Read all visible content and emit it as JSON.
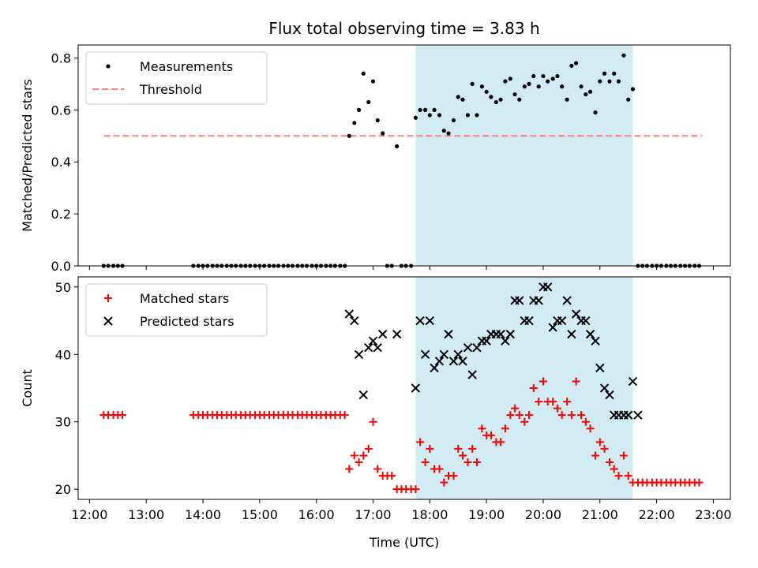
{
  "chart_data": {
    "type": "scatter",
    "title": "Flux total observing time = 3.83 h",
    "xlabel": "Time (UTC)",
    "x_unit": "UTC hour",
    "xlim": [
      11.8,
      23.3
    ],
    "x_ticks": [
      {
        "value": 12,
        "label": "12:00"
      },
      {
        "value": 13,
        "label": "13:00"
      },
      {
        "value": 14,
        "label": "14:00"
      },
      {
        "value": 15,
        "label": "15:00"
      },
      {
        "value": 16,
        "label": "16:00"
      },
      {
        "value": 17,
        "label": "17:00"
      },
      {
        "value": 18,
        "label": "18:00"
      },
      {
        "value": 19,
        "label": "19:00"
      },
      {
        "value": 20,
        "label": "20:00"
      },
      {
        "value": 21,
        "label": "21:00"
      },
      {
        "value": 22,
        "label": "22:00"
      },
      {
        "value": 23,
        "label": "23:00"
      }
    ],
    "highlight_span": {
      "x_start": 17.75,
      "x_end": 21.58,
      "color": "#add8e6"
    },
    "panels": [
      {
        "ylabel": "Matched/Predicted stars",
        "ylim": [
          0,
          0.85
        ],
        "y_ticks": [
          {
            "value": 0.0,
            "label": "0.0"
          },
          {
            "value": 0.2,
            "label": "0.2"
          },
          {
            "value": 0.4,
            "label": "0.4"
          },
          {
            "value": 0.6,
            "label": "0.6"
          },
          {
            "value": 0.8,
            "label": "0.8"
          }
        ],
        "legend": {
          "position": "upper-left",
          "entries": [
            {
              "label": "Measurements",
              "marker": "dot",
              "color": "#000000"
            },
            {
              "label": "Threshold",
              "marker": "dashed-line",
              "color": "#ff7f7f"
            }
          ]
        },
        "threshold": {
          "value": 0.5,
          "x_start": 12.25,
          "x_end": 22.8,
          "color": "#ff7f7f"
        },
        "series": [
          {
            "name": "Measurements",
            "marker": "dot",
            "color": "#000000",
            "x": [
              12.25,
              12.33,
              12.42,
              12.5,
              12.58,
              13.83,
              13.92,
              14.0,
              14.08,
              14.17,
              14.25,
              14.33,
              14.42,
              14.5,
              14.58,
              14.67,
              14.75,
              14.83,
              14.92,
              15.0,
              15.08,
              15.17,
              15.25,
              15.33,
              15.42,
              15.5,
              15.58,
              15.67,
              15.75,
              15.83,
              15.92,
              16.0,
              16.08,
              16.17,
              16.25,
              16.33,
              16.42,
              16.5,
              16.58,
              16.67,
              16.75,
              16.83,
              16.92,
              17.0,
              17.08,
              17.17,
              17.25,
              17.33,
              17.42,
              17.5,
              17.58,
              17.67,
              17.75,
              17.83,
              17.92,
              18.0,
              18.08,
              18.17,
              18.25,
              18.33,
              18.42,
              18.5,
              18.58,
              18.67,
              18.75,
              18.83,
              18.92,
              19.0,
              19.08,
              19.17,
              19.25,
              19.33,
              19.42,
              19.5,
              19.58,
              19.67,
              19.75,
              19.83,
              19.92,
              20.0,
              20.08,
              20.17,
              20.25,
              20.33,
              20.42,
              20.5,
              20.58,
              20.67,
              20.75,
              20.83,
              20.92,
              21.0,
              21.08,
              21.17,
              21.25,
              21.33,
              21.42,
              21.5,
              21.58,
              21.67,
              21.75,
              21.83,
              21.92,
              22.0,
              22.08,
              22.17,
              22.25,
              22.33,
              22.42,
              22.5,
              22.58,
              22.67,
              22.75
            ],
            "y": [
              0,
              0,
              0,
              0,
              0,
              0,
              0,
              0,
              0,
              0,
              0,
              0,
              0,
              0,
              0,
              0,
              0,
              0,
              0,
              0,
              0,
              0,
              0,
              0,
              0,
              0,
              0,
              0,
              0,
              0,
              0,
              0,
              0,
              0,
              0,
              0,
              0,
              0,
              0.5,
              0.55,
              0.6,
              0.74,
              0.63,
              0.71,
              0.56,
              0.51,
              0,
              0,
              0.46,
              0,
              0,
              0,
              0.57,
              0.6,
              0.6,
              0.58,
              0.6,
              0.58,
              0.52,
              0.51,
              0.56,
              0.65,
              0.64,
              0.58,
              0.7,
              0.58,
              0.69,
              0.67,
              0.65,
              0.63,
              0.64,
              0.71,
              0.72,
              0.66,
              0.64,
              0.69,
              0.7,
              0.73,
              0.69,
              0.73,
              0.71,
              0.72,
              0.73,
              0.69,
              0.64,
              0.77,
              0.78,
              0.69,
              0.66,
              0.67,
              0.59,
              0.71,
              0.74,
              0.71,
              0.74,
              0.71,
              0.81,
              0.64,
              0.68,
              0,
              0,
              0,
              0,
              0,
              0,
              0,
              0,
              0,
              0,
              0,
              0,
              0,
              0
            ]
          }
        ]
      },
      {
        "ylabel": "Count",
        "ylim": [
          18.5,
          51.5
        ],
        "y_ticks": [
          {
            "value": 20,
            "label": "20"
          },
          {
            "value": 30,
            "label": "30"
          },
          {
            "value": 40,
            "label": "40"
          },
          {
            "value": 50,
            "label": "50"
          }
        ],
        "legend": {
          "position": "upper-left",
          "entries": [
            {
              "label": "Matched stars",
              "marker": "plus",
              "color": "#ff0000"
            },
            {
              "label": "Predicted stars",
              "marker": "cross",
              "color": "#000000"
            }
          ]
        },
        "series": [
          {
            "name": "Matched stars",
            "marker": "plus",
            "color": "#ff0000",
            "x": [
              12.25,
              12.33,
              12.42,
              12.5,
              12.58,
              13.83,
              13.92,
              14.0,
              14.08,
              14.17,
              14.25,
              14.33,
              14.42,
              14.5,
              14.58,
              14.67,
              14.75,
              14.83,
              14.92,
              15.0,
              15.08,
              15.17,
              15.25,
              15.33,
              15.42,
              15.5,
              15.58,
              15.67,
              15.75,
              15.83,
              15.92,
              16.0,
              16.08,
              16.17,
              16.25,
              16.33,
              16.42,
              16.5,
              16.58,
              16.67,
              16.75,
              16.83,
              16.92,
              17.0,
              17.08,
              17.17,
              17.25,
              17.33,
              17.42,
              17.5,
              17.58,
              17.67,
              17.75,
              17.83,
              17.92,
              18.0,
              18.08,
              18.17,
              18.25,
              18.33,
              18.42,
              18.5,
              18.58,
              18.67,
              18.75,
              18.83,
              18.92,
              19.0,
              19.08,
              19.17,
              19.25,
              19.33,
              19.42,
              19.5,
              19.58,
              19.67,
              19.75,
              19.83,
              19.92,
              20.0,
              20.08,
              20.17,
              20.25,
              20.33,
              20.42,
              20.5,
              20.58,
              20.67,
              20.75,
              20.83,
              20.92,
              21.0,
              21.08,
              21.17,
              21.25,
              21.33,
              21.42,
              21.5,
              21.58,
              21.67,
              21.75,
              21.83,
              21.92,
              22.0,
              22.08,
              22.17,
              22.25,
              22.33,
              22.42,
              22.5,
              22.58,
              22.67,
              22.75
            ],
            "y": [
              31,
              31,
              31,
              31,
              31,
              31,
              31,
              31,
              31,
              31,
              31,
              31,
              31,
              31,
              31,
              31,
              31,
              31,
              31,
              31,
              31,
              31,
              31,
              31,
              31,
              31,
              31,
              31,
              31,
              31,
              31,
              31,
              31,
              31,
              31,
              31,
              31,
              31,
              23,
              25,
              24,
              25,
              26,
              30,
              23,
              22,
              22,
              22,
              20,
              20,
              20,
              20,
              20,
              27,
              24,
              26,
              23,
              23,
              21,
              22,
              22,
              26,
              25,
              24,
              26,
              24,
              29,
              28,
              28,
              27,
              27,
              29,
              31,
              32,
              31,
              30,
              31,
              35,
              33,
              36,
              33,
              33,
              32,
              31,
              33,
              31,
              36,
              31,
              30,
              29,
              25,
              27,
              26,
              24,
              23,
              22,
              25,
              22,
              21,
              21,
              21,
              21,
              21,
              21,
              21,
              21,
              21,
              21,
              21,
              21,
              21,
              21,
              21
            ]
          },
          {
            "name": "Predicted stars",
            "marker": "cross",
            "color": "#000000",
            "x": [
              16.58,
              16.67,
              16.75,
              16.83,
              16.92,
              17.0,
              17.08,
              17.17,
              17.42,
              17.75,
              17.83,
              17.92,
              18.0,
              18.08,
              18.17,
              18.25,
              18.33,
              18.42,
              18.5,
              18.58,
              18.67,
              18.75,
              18.83,
              18.92,
              19.0,
              19.08,
              19.17,
              19.25,
              19.33,
              19.42,
              19.5,
              19.58,
              19.67,
              19.75,
              19.83,
              19.92,
              20.0,
              20.08,
              20.17,
              20.25,
              20.33,
              20.42,
              20.5,
              20.58,
              20.67,
              20.75,
              20.83,
              20.92,
              21.0,
              21.08,
              21.17,
              21.25,
              21.33,
              21.42,
              21.5,
              21.58,
              21.67
            ],
            "y": [
              46,
              45,
              40,
              34,
              41,
              42,
              41,
              43,
              43,
              35,
              45,
              40,
              45,
              38,
              39,
              40,
              43,
              39,
              40,
              39,
              41,
              37,
              41,
              42,
              42,
              43,
              43,
              43,
              42,
              43,
              48,
              48,
              45,
              45,
              48,
              48,
              50,
              50,
              44,
              45,
              45,
              48,
              43,
              46,
              45,
              45,
              43,
              42,
              38,
              35,
              34,
              31,
              31,
              31,
              31,
              36,
              31
            ]
          }
        ]
      }
    ]
  }
}
